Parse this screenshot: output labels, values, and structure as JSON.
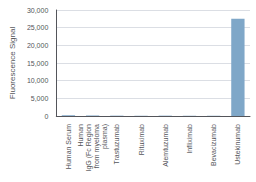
{
  "chart_data": {
    "type": "bar",
    "categories": [
      "Human Serum",
      "Human\nIgG (Fc Region\nfrom myeloma\nplasma)",
      "Trastuzumab",
      "Rituximab",
      "Alemtuzumab",
      "Infliximab",
      "Bevacizumab",
      "Ustekinumab"
    ],
    "values": [
      200,
      150,
      100,
      80,
      100,
      100,
      100,
      27500
    ],
    "color": "#7fa7c8",
    "ylabel": "Fluorescence Signal",
    "ylim": [
      0,
      30000
    ],
    "yticks": [
      0,
      {
        "value": 5000,
        "label": "5,000"
      },
      {
        "value": 10000,
        "label": "10,000"
      },
      {
        "value": 15000,
        "label": "15,000"
      },
      {
        "value": 20000,
        "label": "20,000"
      },
      {
        "value": 25000,
        "label": "25,000"
      },
      {
        "value": 30000,
        "label": "30,000"
      }
    ],
    "grid": true
  }
}
